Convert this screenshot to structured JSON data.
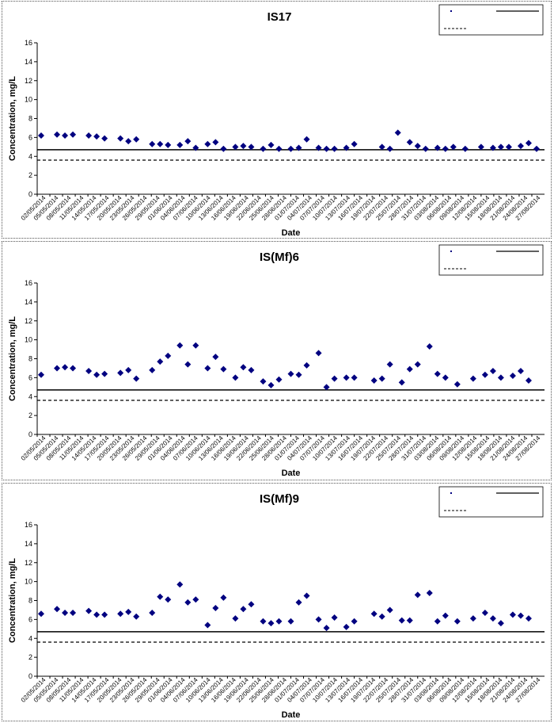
{
  "chart_data": [
    {
      "type": "scatter",
      "title": "IS17",
      "xlabel": "Date",
      "ylabel": "Concentration, mg/L",
      "ylim": [
        0,
        16
      ],
      "yticks": [
        0,
        2,
        4,
        6,
        8,
        10,
        12,
        14,
        16
      ],
      "x_tick_labels": [
        "02/05/2014",
        "05/05/2014",
        "08/05/2014",
        "11/05/2014",
        "14/05/2014",
        "17/05/2014",
        "20/05/2014",
        "23/05/2014",
        "26/05/2014",
        "29/05/2014",
        "01/06/2014",
        "04/06/2014",
        "07/06/2014",
        "10/06/2014",
        "13/06/2014",
        "16/06/2014",
        "19/06/2014",
        "22/06/2014",
        "25/06/2014",
        "28/06/2014",
        "01/07/2014",
        "04/07/2014",
        "07/07/2014",
        "10/07/2014",
        "13/07/2014",
        "16/07/2014",
        "19/07/2014",
        "22/07/2014",
        "25/07/2014",
        "28/07/2014",
        "31/07/2014",
        "03/08/2014",
        "06/08/2014",
        "09/08/2014",
        "12/08/2014",
        "15/08/2014",
        "18/08/2014",
        "21/08/2014",
        "24/08/2014",
        "27/08/2014"
      ],
      "x_range": [
        "2014-05-02",
        "2014-08-29"
      ],
      "grid": false,
      "legend_position": "top-right",
      "legend_entries": [
        "",
        "",
        ""
      ],
      "reference_lines": [
        {
          "style": "solid",
          "y": 4.7
        },
        {
          "style": "dashed",
          "y": 3.6
        }
      ],
      "points": [
        [
          "2014-05-02",
          6.2
        ],
        [
          "2014-05-06",
          6.3
        ],
        [
          "2014-05-08",
          6.2
        ],
        [
          "2014-05-10",
          6.3
        ],
        [
          "2014-05-14",
          6.2
        ],
        [
          "2014-05-16",
          6.1
        ],
        [
          "2014-05-18",
          5.9
        ],
        [
          "2014-05-22",
          5.9
        ],
        [
          "2014-05-24",
          5.6
        ],
        [
          "2014-05-26",
          5.8
        ],
        [
          "2014-05-30",
          5.3
        ],
        [
          "2014-06-01",
          5.3
        ],
        [
          "2014-06-03",
          5.2
        ],
        [
          "2014-06-06",
          5.2
        ],
        [
          "2014-06-08",
          5.6
        ],
        [
          "2014-06-10",
          4.9
        ],
        [
          "2014-06-13",
          5.3
        ],
        [
          "2014-06-15",
          5.5
        ],
        [
          "2014-06-17",
          4.8
        ],
        [
          "2014-06-20",
          5.0
        ],
        [
          "2014-06-22",
          5.1
        ],
        [
          "2014-06-24",
          5.0
        ],
        [
          "2014-06-27",
          4.8
        ],
        [
          "2014-06-29",
          5.2
        ],
        [
          "2014-07-01",
          4.8
        ],
        [
          "2014-07-04",
          4.8
        ],
        [
          "2014-07-06",
          4.9
        ],
        [
          "2014-07-08",
          5.8
        ],
        [
          "2014-07-11",
          4.9
        ],
        [
          "2014-07-13",
          4.8
        ],
        [
          "2014-07-15",
          4.8
        ],
        [
          "2014-07-18",
          4.9
        ],
        [
          "2014-07-20",
          5.3
        ],
        [
          "2014-07-27",
          5.0
        ],
        [
          "2014-07-29",
          4.8
        ],
        [
          "2014-07-31",
          6.5
        ],
        [
          "2014-08-03",
          5.5
        ],
        [
          "2014-08-05",
          5.1
        ],
        [
          "2014-08-07",
          4.8
        ],
        [
          "2014-08-10",
          4.9
        ],
        [
          "2014-08-12",
          4.8
        ],
        [
          "2014-08-14",
          5.0
        ],
        [
          "2014-08-17",
          4.8
        ],
        [
          "2014-08-21",
          5.0
        ],
        [
          "2014-08-24",
          4.9
        ],
        [
          "2014-08-26",
          5.0
        ],
        [
          "2014-08-28",
          5.0
        ],
        [
          "2014-08-31",
          5.1
        ],
        [
          "2014-09-02",
          5.4
        ],
        [
          "2014-09-04",
          4.8
        ]
      ]
    },
    {
      "type": "scatter",
      "title": "IS(Mf)6",
      "xlabel": "Date",
      "ylabel": "Concentration, mg/L",
      "ylim": [
        0,
        16
      ],
      "yticks": [
        0,
        2,
        4,
        6,
        8,
        10,
        12,
        14,
        16
      ],
      "x_tick_labels": [
        "02/05/2014",
        "05/05/2014",
        "08/05/2014",
        "11/05/2014",
        "14/05/2014",
        "17/05/2014",
        "20/05/2014",
        "23/05/2014",
        "26/05/2014",
        "29/05/2014",
        "01/06/2014",
        "04/06/2014",
        "07/06/2014",
        "10/06/2014",
        "13/06/2014",
        "16/06/2014",
        "19/06/2014",
        "22/06/2014",
        "25/06/2014",
        "28/06/2014",
        "01/07/2014",
        "04/07/2014",
        "07/07/2014",
        "10/07/2014",
        "13/07/2014",
        "16/07/2014",
        "19/07/2014",
        "22/07/2014",
        "25/07/2014",
        "28/07/2014",
        "31/07/2014",
        "03/08/2014",
        "06/08/2014",
        "09/08/2014",
        "12/08/2014",
        "15/08/2014",
        "18/08/2014",
        "21/08/2014",
        "24/08/2014",
        "27/08/2014"
      ],
      "x_range": [
        "2014-05-02",
        "2014-08-29"
      ],
      "grid": false,
      "legend_position": "top-right",
      "legend_entries": [
        "",
        "",
        ""
      ],
      "reference_lines": [
        {
          "style": "solid",
          "y": 4.7
        },
        {
          "style": "dashed",
          "y": 3.6
        }
      ],
      "points": [
        [
          "2014-05-02",
          6.3
        ],
        [
          "2014-05-06",
          7.0
        ],
        [
          "2014-05-08",
          7.1
        ],
        [
          "2014-05-10",
          7.0
        ],
        [
          "2014-05-14",
          6.7
        ],
        [
          "2014-05-16",
          6.3
        ],
        [
          "2014-05-18",
          6.4
        ],
        [
          "2014-05-22",
          6.5
        ],
        [
          "2014-05-24",
          6.8
        ],
        [
          "2014-05-26",
          5.9
        ],
        [
          "2014-05-30",
          6.8
        ],
        [
          "2014-06-01",
          7.7
        ],
        [
          "2014-06-03",
          8.3
        ],
        [
          "2014-06-06",
          9.4
        ],
        [
          "2014-06-08",
          7.4
        ],
        [
          "2014-06-10",
          9.4
        ],
        [
          "2014-06-13",
          7.0
        ],
        [
          "2014-06-15",
          8.2
        ],
        [
          "2014-06-17",
          6.9
        ],
        [
          "2014-06-20",
          6.0
        ],
        [
          "2014-06-22",
          7.1
        ],
        [
          "2014-06-24",
          6.8
        ],
        [
          "2014-06-27",
          5.6
        ],
        [
          "2014-06-29",
          5.2
        ],
        [
          "2014-07-01",
          5.8
        ],
        [
          "2014-07-04",
          6.4
        ],
        [
          "2014-07-06",
          6.3
        ],
        [
          "2014-07-08",
          7.3
        ],
        [
          "2014-07-11",
          8.6
        ],
        [
          "2014-07-13",
          5.0
        ],
        [
          "2014-07-15",
          5.9
        ],
        [
          "2014-07-18",
          6.0
        ],
        [
          "2014-07-20",
          6.0
        ],
        [
          "2014-07-25",
          5.7
        ],
        [
          "2014-07-27",
          5.9
        ],
        [
          "2014-07-29",
          7.4
        ],
        [
          "2014-08-01",
          5.5
        ],
        [
          "2014-08-03",
          6.9
        ],
        [
          "2014-08-05",
          7.4
        ],
        [
          "2014-08-08",
          9.3
        ],
        [
          "2014-08-10",
          6.4
        ],
        [
          "2014-08-12",
          6.0
        ],
        [
          "2014-08-15",
          5.3
        ],
        [
          "2014-08-19",
          5.9
        ],
        [
          "2014-08-22",
          6.3
        ],
        [
          "2014-08-24",
          6.7
        ],
        [
          "2014-08-26",
          6.0
        ],
        [
          "2014-08-29",
          6.2
        ],
        [
          "2014-08-31",
          6.7
        ],
        [
          "2014-09-02",
          5.7
        ]
      ]
    },
    {
      "type": "scatter",
      "title": "IS(Mf)9",
      "xlabel": "Date",
      "ylabel": "Concentration, mg/L",
      "ylim": [
        0,
        16
      ],
      "yticks": [
        0,
        2,
        4,
        6,
        8,
        10,
        12,
        14,
        16
      ],
      "x_tick_labels": [
        "02/05/2014",
        "05/05/2014",
        "08/05/2014",
        "11/05/2014",
        "14/05/2014",
        "17/05/2014",
        "20/05/2014",
        "23/05/2014",
        "26/05/2014",
        "29/05/2014",
        "01/06/2014",
        "04/06/2014",
        "07/06/2014",
        "10/06/2014",
        "13/06/2014",
        "16/06/2014",
        "19/06/2014",
        "22/06/2014",
        "25/06/2014",
        "28/06/2014",
        "01/07/2014",
        "04/07/2014",
        "07/07/2014",
        "10/07/2014",
        "13/07/2014",
        "16/07/2014",
        "19/07/2014",
        "22/07/2014",
        "25/07/2014",
        "28/07/2014",
        "31/07/2014",
        "03/08/2014",
        "06/08/2014",
        "09/08/2014",
        "12/08/2014",
        "15/08/2014",
        "18/08/2014",
        "21/08/2014",
        "24/08/2014",
        "27/08/2014"
      ],
      "x_range": [
        "2014-05-02",
        "2014-08-29"
      ],
      "grid": false,
      "legend_position": "top-right",
      "legend_entries": [
        "",
        "",
        ""
      ],
      "reference_lines": [
        {
          "style": "solid",
          "y": 4.7
        },
        {
          "style": "dashed",
          "y": 3.6
        }
      ],
      "points": [
        [
          "2014-05-02",
          6.6
        ],
        [
          "2014-05-06",
          7.1
        ],
        [
          "2014-05-08",
          6.7
        ],
        [
          "2014-05-10",
          6.7
        ],
        [
          "2014-05-14",
          6.9
        ],
        [
          "2014-05-16",
          6.5
        ],
        [
          "2014-05-18",
          6.5
        ],
        [
          "2014-05-22",
          6.6
        ],
        [
          "2014-05-24",
          6.8
        ],
        [
          "2014-05-26",
          6.3
        ],
        [
          "2014-05-30",
          6.7
        ],
        [
          "2014-06-01",
          8.4
        ],
        [
          "2014-06-03",
          8.1
        ],
        [
          "2014-06-06",
          9.7
        ],
        [
          "2014-06-08",
          7.8
        ],
        [
          "2014-06-10",
          8.1
        ],
        [
          "2014-06-13",
          5.4
        ],
        [
          "2014-06-15",
          7.2
        ],
        [
          "2014-06-17",
          8.3
        ],
        [
          "2014-06-20",
          6.1
        ],
        [
          "2014-06-22",
          7.1
        ],
        [
          "2014-06-24",
          7.6
        ],
        [
          "2014-06-27",
          5.8
        ],
        [
          "2014-06-29",
          5.6
        ],
        [
          "2014-07-01",
          5.8
        ],
        [
          "2014-07-04",
          5.8
        ],
        [
          "2014-07-06",
          7.8
        ],
        [
          "2014-07-08",
          8.5
        ],
        [
          "2014-07-11",
          6.0
        ],
        [
          "2014-07-13",
          5.1
        ],
        [
          "2014-07-15",
          6.2
        ],
        [
          "2014-07-18",
          5.2
        ],
        [
          "2014-07-20",
          5.8
        ],
        [
          "2014-07-25",
          6.6
        ],
        [
          "2014-07-27",
          6.3
        ],
        [
          "2014-07-29",
          7.0
        ],
        [
          "2014-08-01",
          5.9
        ],
        [
          "2014-08-03",
          5.9
        ],
        [
          "2014-08-05",
          8.6
        ],
        [
          "2014-08-08",
          8.8
        ],
        [
          "2014-08-10",
          5.8
        ],
        [
          "2014-08-12",
          6.4
        ],
        [
          "2014-08-15",
          5.8
        ],
        [
          "2014-08-19",
          6.1
        ],
        [
          "2014-08-22",
          6.7
        ],
        [
          "2014-08-24",
          6.1
        ],
        [
          "2014-08-26",
          5.6
        ],
        [
          "2014-08-29",
          6.5
        ],
        [
          "2014-08-31",
          6.4
        ],
        [
          "2014-09-02",
          6.1
        ]
      ]
    }
  ]
}
